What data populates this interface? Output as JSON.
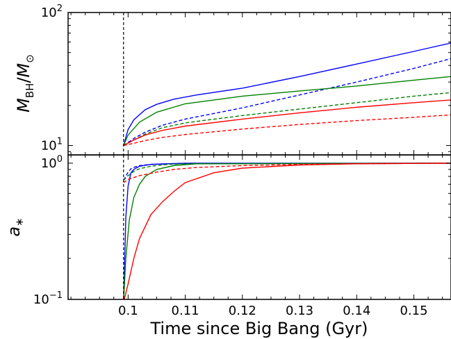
{
  "chart_data": [
    {
      "type": "line",
      "panel": "top",
      "ylabel": "M_BH/M_⊙",
      "yscale": "log",
      "ylim": [
        8.5,
        100
      ],
      "xlim": [
        0.0895,
        0.1565
      ],
      "yticks": [
        {
          "value": 10,
          "base": "10",
          "exp": "1"
        },
        {
          "value": 100,
          "base": "10",
          "exp": "2"
        }
      ],
      "vline": {
        "x": 0.0992,
        "style": "dashed",
        "color": "#000000"
      },
      "series": [
        {
          "color": "#0000ff",
          "style": "solid",
          "x": [
            0.0992,
            0.1,
            0.101,
            0.103,
            0.105,
            0.108,
            0.112,
            0.12,
            0.13,
            0.14,
            0.15,
            0.1565
          ],
          "y": [
            10,
            13.2,
            15.6,
            18.6,
            20.4,
            22.3,
            24.0,
            27.0,
            33.0,
            41.0,
            51.0,
            59.0
          ]
        },
        {
          "color": "#0000ff",
          "style": "dashed",
          "x": [
            0.0992,
            0.101,
            0.103,
            0.106,
            0.11,
            0.12,
            0.13,
            0.14,
            0.15,
            0.1565
          ],
          "y": [
            10,
            11.3,
            12.6,
            14.2,
            15.8,
            19.2,
            24.0,
            30.0,
            38.0,
            45.0
          ]
        },
        {
          "color": "#008000",
          "style": "solid",
          "x": [
            0.0992,
            0.1,
            0.102,
            0.105,
            0.11,
            0.12,
            0.13,
            0.14,
            0.15,
            0.1565
          ],
          "y": [
            10,
            12.0,
            15.0,
            17.8,
            20.6,
            23.5,
            25.7,
            28.0,
            31.0,
            33.0
          ]
        },
        {
          "color": "#008000",
          "style": "dashed",
          "x": [
            0.0992,
            0.101,
            0.103,
            0.106,
            0.11,
            0.12,
            0.13,
            0.14,
            0.15,
            0.1565
          ],
          "y": [
            10,
            11.0,
            12.2,
            13.6,
            14.8,
            16.8,
            18.8,
            21.0,
            23.5,
            25.0
          ]
        },
        {
          "color": "#ff0000",
          "style": "solid",
          "x": [
            0.0992,
            0.101,
            0.103,
            0.106,
            0.11,
            0.12,
            0.13,
            0.14,
            0.15,
            0.1565
          ],
          "y": [
            10,
            11.0,
            12.0,
            13.0,
            14.0,
            15.8,
            17.6,
            19.4,
            21.0,
            22.0
          ]
        },
        {
          "color": "#ff0000",
          "style": "dashed",
          "x": [
            0.0992,
            0.101,
            0.103,
            0.106,
            0.11,
            0.12,
            0.13,
            0.14,
            0.15,
            0.1565
          ],
          "y": [
            10,
            10.4,
            10.9,
            11.5,
            12.1,
            13.3,
            14.4,
            15.4,
            16.3,
            17.0
          ]
        }
      ]
    },
    {
      "type": "line",
      "panel": "bottom",
      "ylabel": "a_*",
      "xlabel": "Time since Big Bang (Gyr)",
      "yscale": "log",
      "ylim": [
        0.1,
        1.15
      ],
      "xlim": [
        0.0895,
        0.1565
      ],
      "xticks": [
        "0.1",
        "0.11",
        "0.12",
        "0.13",
        "0.14",
        "0.15"
      ],
      "xtick_values": [
        0.1,
        0.11,
        0.12,
        0.13,
        0.14,
        0.15
      ],
      "yticks": [
        {
          "value": 0.1,
          "base": "10",
          "exp": "−1"
        },
        {
          "value": 1,
          "base": "10",
          "exp": "0"
        }
      ],
      "vline": {
        "x": 0.0992,
        "style": "dashed",
        "color": "#000000"
      },
      "series": [
        {
          "color": "#0000ff",
          "style": "solid",
          "x": [
            0.0992,
            0.0996,
            0.1,
            0.1005,
            0.101,
            0.102,
            0.104,
            0.107,
            0.11,
            0.1565
          ],
          "y": [
            0.095,
            0.4,
            0.68,
            0.85,
            0.9,
            0.95,
            0.98,
            0.99,
            1.0,
            1.0
          ]
        },
        {
          "color": "#0000ff",
          "style": "dashed",
          "x": [
            0.0992,
            0.0996,
            0.1,
            0.1005,
            0.101,
            0.102,
            0.104,
            0.107,
            0.1565
          ],
          "y": [
            0.75,
            0.8,
            0.86,
            0.91,
            0.93,
            0.96,
            0.98,
            0.99,
            1.0
          ]
        },
        {
          "color": "#008000",
          "style": "solid",
          "x": [
            0.0992,
            0.0996,
            0.1002,
            0.101,
            0.102,
            0.103,
            0.105,
            0.108,
            0.112,
            0.1565
          ],
          "y": [
            0.095,
            0.2,
            0.38,
            0.56,
            0.7,
            0.8,
            0.9,
            0.96,
            0.99,
            1.0
          ]
        },
        {
          "color": "#008000",
          "style": "dashed",
          "x": [
            0.0992,
            0.1,
            0.101,
            0.102,
            0.104,
            0.107,
            0.11,
            0.1565
          ],
          "y": [
            0.75,
            0.81,
            0.87,
            0.91,
            0.95,
            0.98,
            0.99,
            1.0
          ]
        },
        {
          "color": "#ff0000",
          "style": "solid",
          "x": [
            0.0992,
            0.1,
            0.101,
            0.102,
            0.104,
            0.106,
            0.108,
            0.11,
            0.115,
            0.12,
            0.13,
            0.14,
            0.1565
          ],
          "y": [
            0.095,
            0.13,
            0.2,
            0.28,
            0.42,
            0.52,
            0.62,
            0.72,
            0.85,
            0.92,
            0.97,
            0.99,
            1.0
          ]
        },
        {
          "color": "#ff0000",
          "style": "dashed",
          "x": [
            0.0992,
            0.1,
            0.102,
            0.105,
            0.108,
            0.112,
            0.12,
            0.13,
            0.14,
            0.1565
          ],
          "y": [
            0.72,
            0.76,
            0.81,
            0.86,
            0.9,
            0.93,
            0.96,
            0.98,
            0.99,
            1.0
          ]
        }
      ]
    }
  ]
}
